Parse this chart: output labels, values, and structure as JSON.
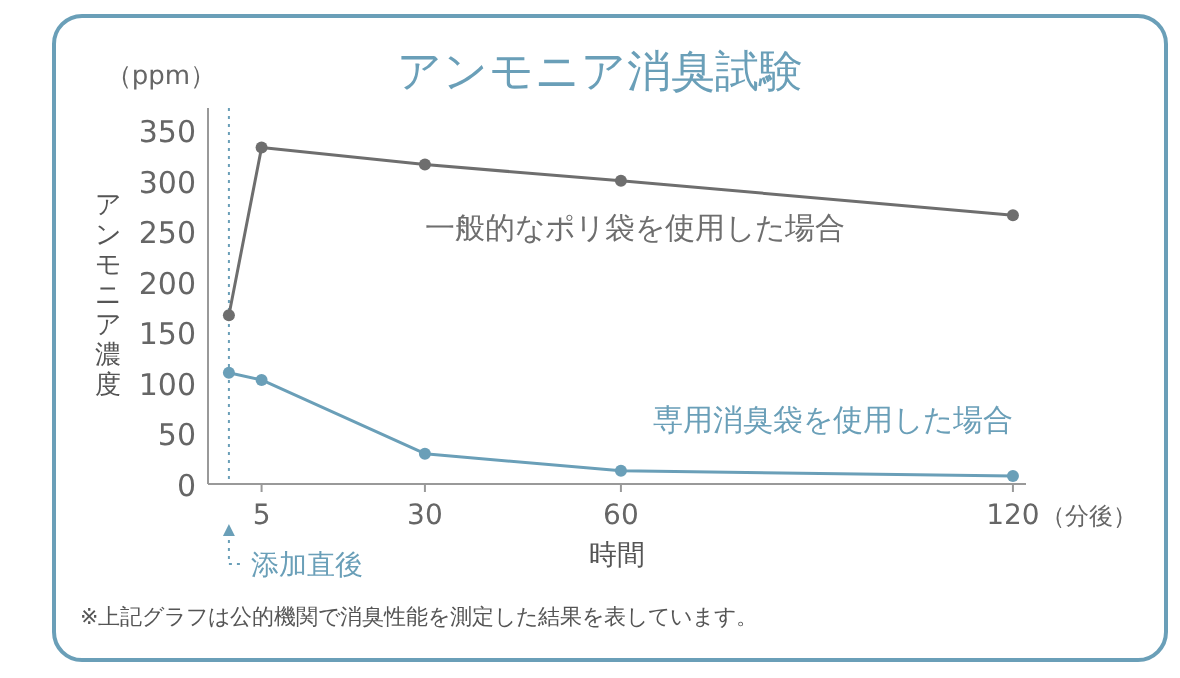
{
  "chart_data": {
    "type": "line",
    "title": "アンモニア消臭試験",
    "xlabel": "時間",
    "ylabel": "アンモニア濃度",
    "x": [
      0,
      5,
      30,
      60,
      120
    ],
    "series": [
      {
        "name": "一般的なポリ袋を使用した場合",
        "color": "#6e6e6e",
        "values": [
          167,
          333,
          316,
          300,
          266
        ]
      },
      {
        "name": "専用消臭袋を使用した場合",
        "color": "#6a9fb8",
        "values": [
          110,
          103,
          30,
          13,
          8
        ]
      }
    ],
    "xlim": [
      -3.2,
      122
    ],
    "xticks": [
      5,
      30,
      60,
      120
    ],
    "ylim": [
      0,
      372
    ],
    "yticks": [
      0,
      50,
      100,
      150,
      200,
      250,
      300,
      350
    ],
    "ref_lines": [
      {
        "axis": "x",
        "value": 0,
        "label": "添加直後",
        "color": "#6a9fb8",
        "line_style": "dotted"
      }
    ],
    "annotations": [
      "（ppm）",
      "※上記グラフは公的機関で消臭性能を測定した結果を表しています。",
      "（分後）"
    ],
    "marker": "circle",
    "line_style": "solid",
    "grid": false
  }
}
